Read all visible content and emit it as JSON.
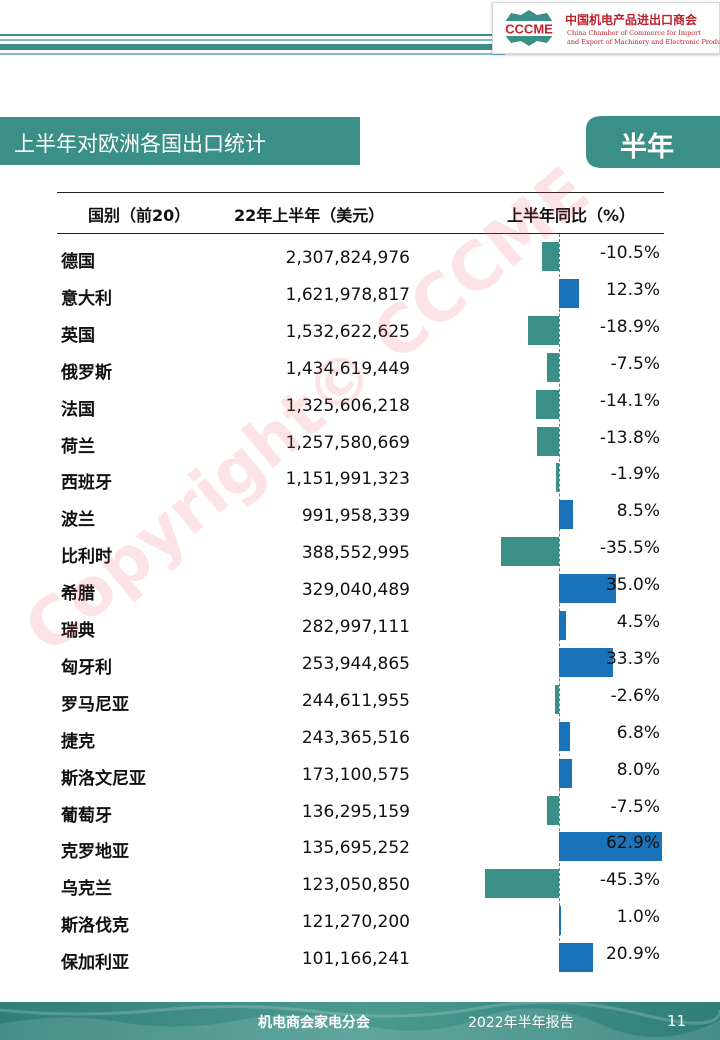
{
  "header": {
    "logo_text": "CCCME",
    "org_cn": "中国机电产品进出口商会",
    "org_en_1": "China Chamber of Commerce for Import",
    "org_en_2": "and Export of Machinery and Electronic Products"
  },
  "section_title": "上半年对欧洲各国出口统计",
  "tag": "半年",
  "watermark": "Copyright© CCCME",
  "colors": {
    "teal": "#3a8f87",
    "positive_bar": "#1a73b8",
    "negative_bar": "#3a8f87"
  },
  "chart_data": {
    "type": "table",
    "columns": [
      "国别（前20）",
      "22年上半年（美元）",
      "上半年同比（%）"
    ],
    "rows": [
      {
        "country": "德国",
        "value": "2,307,824,976",
        "yoy": "-10.5%",
        "yoy_num": -10.5
      },
      {
        "country": "意大利",
        "value": "1,621,978,817",
        "yoy": "12.3%",
        "yoy_num": 12.3
      },
      {
        "country": "英国",
        "value": "1,532,622,625",
        "yoy": "-18.9%",
        "yoy_num": -18.9
      },
      {
        "country": "俄罗斯",
        "value": "1,434,619,449",
        "yoy": "-7.5%",
        "yoy_num": -7.5
      },
      {
        "country": "法国",
        "value": "1,325,606,218",
        "yoy": "-14.1%",
        "yoy_num": -14.1
      },
      {
        "country": "荷兰",
        "value": "1,257,580,669",
        "yoy": "-13.8%",
        "yoy_num": -13.8
      },
      {
        "country": "西班牙",
        "value": "1,151,991,323",
        "yoy": "-1.9%",
        "yoy_num": -1.9
      },
      {
        "country": "波兰",
        "value": "991,958,339",
        "yoy": "8.5%",
        "yoy_num": 8.5
      },
      {
        "country": "比利时",
        "value": "388,552,995",
        "yoy": "-35.5%",
        "yoy_num": -35.5
      },
      {
        "country": "希腊",
        "value": "329,040,489",
        "yoy": "35.0%",
        "yoy_num": 35.0
      },
      {
        "country": "瑞典",
        "value": "282,997,111",
        "yoy": "4.5%",
        "yoy_num": 4.5
      },
      {
        "country": "匈牙利",
        "value": "253,944,865",
        "yoy": "33.3%",
        "yoy_num": 33.3
      },
      {
        "country": "罗马尼亚",
        "value": "244,611,955",
        "yoy": "-2.6%",
        "yoy_num": -2.6
      },
      {
        "country": "捷克",
        "value": "243,365,516",
        "yoy": "6.8%",
        "yoy_num": 6.8
      },
      {
        "country": "斯洛文尼亚",
        "value": "173,100,575",
        "yoy": "8.0%",
        "yoy_num": 8.0
      },
      {
        "country": "葡萄牙",
        "value": "136,295,159",
        "yoy": "-7.5%",
        "yoy_num": -7.5
      },
      {
        "country": "克罗地亚",
        "value": "135,695,252",
        "yoy": "62.9%",
        "yoy_num": 62.9
      },
      {
        "country": "乌克兰",
        "value": "123,050,850",
        "yoy": "-45.3%",
        "yoy_num": -45.3
      },
      {
        "country": "斯洛伐克",
        "value": "121,270,200",
        "yoy": "1.0%",
        "yoy_num": 1.0
      },
      {
        "country": "保加利亚",
        "value": "101,166,241",
        "yoy": "20.9%",
        "yoy_num": 20.9
      }
    ]
  },
  "footer": {
    "org": "机电商会家电分会",
    "report": "2022年半年报告",
    "page": "11"
  }
}
